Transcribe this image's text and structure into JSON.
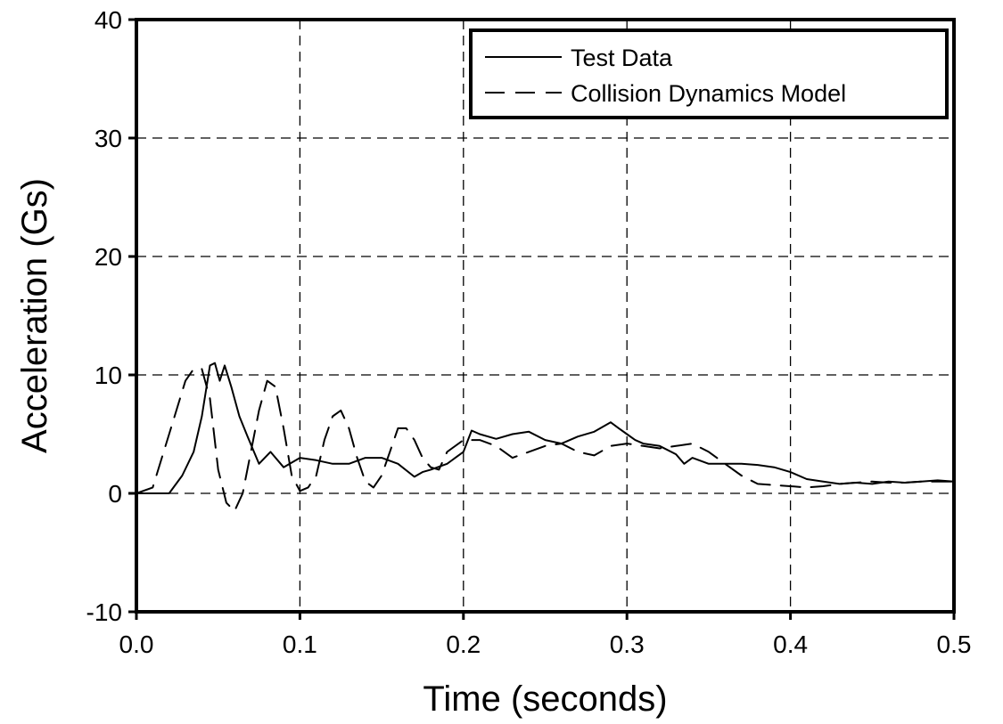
{
  "chart_data": {
    "type": "line",
    "xlabel": "Time (seconds)",
    "ylabel": "Acceleration (Gs)",
    "xlim": [
      0,
      0.5
    ],
    "ylim": [
      -10,
      40
    ],
    "x_ticks": [
      0,
      0.1,
      0.2,
      0.3,
      0.4,
      0.5
    ],
    "x_tick_labels": [
      "0.0",
      "0.1",
      "0.2",
      "0.3",
      "0.4",
      "0.5"
    ],
    "y_ticks": [
      -10,
      0,
      10,
      20,
      30,
      40
    ],
    "y_tick_labels": [
      "-10",
      "0",
      "10",
      "20",
      "30",
      "40"
    ],
    "grid": true,
    "legend_position": "top-right",
    "series": [
      {
        "name": "Test Data",
        "line_style": "solid",
        "x": [
          0,
          0.02,
          0.028,
          0.035,
          0.04,
          0.045,
          0.048,
          0.051,
          0.054,
          0.058,
          0.063,
          0.068,
          0.075,
          0.082,
          0.09,
          0.1,
          0.11,
          0.12,
          0.13,
          0.14,
          0.15,
          0.16,
          0.17,
          0.175,
          0.18,
          0.19,
          0.2,
          0.205,
          0.21,
          0.22,
          0.23,
          0.24,
          0.25,
          0.26,
          0.27,
          0.28,
          0.29,
          0.295,
          0.3,
          0.305,
          0.31,
          0.32,
          0.33,
          0.335,
          0.34,
          0.35,
          0.36,
          0.37,
          0.38,
          0.39,
          0.4,
          0.41,
          0.42,
          0.43,
          0.44,
          0.45,
          0.46,
          0.47,
          0.48,
          0.49,
          0.5
        ],
        "y": [
          0,
          0,
          1.5,
          3.5,
          6.5,
          10.8,
          11,
          9.5,
          10.8,
          9,
          6.5,
          4.8,
          2.5,
          3.5,
          2.2,
          3,
          2.8,
          2.5,
          2.5,
          3,
          3,
          2.5,
          1.4,
          1.8,
          2,
          2.5,
          3.5,
          5.3,
          5,
          4.6,
          5,
          5.2,
          4.5,
          4.2,
          4.8,
          5.2,
          6,
          5.5,
          5,
          4.5,
          4.2,
          4,
          3.3,
          2.5,
          3,
          2.5,
          2.5,
          2.5,
          2.4,
          2.2,
          1.8,
          1.2,
          1,
          0.8,
          0.9,
          0.8,
          1,
          0.9,
          1,
          1.1,
          1
        ]
      },
      {
        "name": "Collision Dynamics Model",
        "line_style": "dashed",
        "x": [
          0,
          0.01,
          0.02,
          0.03,
          0.035,
          0.04,
          0.045,
          0.05,
          0.055,
          0.06,
          0.065,
          0.07,
          0.075,
          0.08,
          0.085,
          0.09,
          0.095,
          0.1,
          0.105,
          0.11,
          0.115,
          0.12,
          0.125,
          0.13,
          0.135,
          0.14,
          0.145,
          0.15,
          0.155,
          0.16,
          0.165,
          0.17,
          0.175,
          0.18,
          0.185,
          0.19,
          0.2,
          0.21,
          0.22,
          0.23,
          0.24,
          0.25,
          0.26,
          0.27,
          0.28,
          0.29,
          0.3,
          0.31,
          0.32,
          0.33,
          0.34,
          0.35,
          0.36,
          0.37,
          0.38,
          0.39,
          0.4,
          0.41,
          0.42,
          0.43,
          0.44,
          0.45,
          0.46,
          0.47,
          0.48,
          0.49,
          0.5
        ],
        "y": [
          0,
          0.5,
          5,
          9.5,
          10.5,
          10.5,
          8,
          2,
          -0.8,
          -1.5,
          0,
          3.5,
          7,
          9.5,
          9,
          5.5,
          1.5,
          0.2,
          0.5,
          1.5,
          4.5,
          6.5,
          7,
          5.5,
          3,
          1,
          0.5,
          1.5,
          3.5,
          5.5,
          5.5,
          4.5,
          3,
          2.2,
          2,
          3.5,
          4.5,
          4.5,
          4,
          3,
          3.5,
          4,
          4.2,
          3.5,
          3.2,
          4,
          4.2,
          4,
          3.8,
          4,
          4.2,
          3.5,
          2.5,
          1.5,
          0.8,
          0.7,
          0.6,
          0.5,
          0.6,
          0.8,
          0.9,
          1,
          0.9,
          0.9,
          1,
          1,
          1
        ]
      }
    ]
  }
}
